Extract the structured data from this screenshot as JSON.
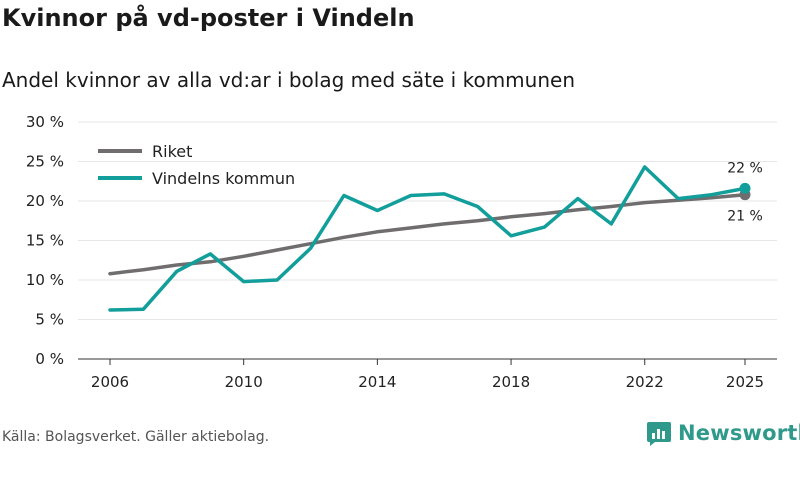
{
  "title": "Kvinnor på vd-poster i Vindeln",
  "subtitle": "Andel kvinnor av alla vd:ar i bolag med säte i kommunen",
  "source": "Källa: Bolagsverket. Gäller aktiebolag.",
  "brand": "Newsworthy",
  "colors": {
    "riket": "#706d6e",
    "vindeln": "#129e9a",
    "grid": "#e6e6e6",
    "brand": "#2f9a8c"
  },
  "chart_data": {
    "type": "line",
    "title": "Kvinnor på vd-poster i Vindeln",
    "subtitle": "Andel kvinnor av alla vd:ar i bolag med säte i kommunen",
    "xlabel": "",
    "ylabel": "",
    "x": [
      2006,
      2007,
      2008,
      2009,
      2010,
      2011,
      2012,
      2013,
      2014,
      2015,
      2016,
      2017,
      2018,
      2019,
      2020,
      2021,
      2022,
      2023,
      2024,
      2025
    ],
    "xticks": [
      2006,
      2010,
      2014,
      2018,
      2022,
      2025
    ],
    "xtick_labels": [
      "2006",
      "2010",
      "2014",
      "2018",
      "2022",
      "2025"
    ],
    "ylim": [
      0,
      30
    ],
    "yticks": [
      0,
      5,
      10,
      15,
      20,
      25,
      30
    ],
    "ytick_labels": [
      "0 %",
      "5 %",
      "10 %",
      "15 %",
      "20 %",
      "25 %",
      "30 %"
    ],
    "grid": true,
    "legend_position": "top-left",
    "series": [
      {
        "name": "Riket",
        "color": "#706d6e",
        "values": [
          10.8,
          11.3,
          11.9,
          12.3,
          13.0,
          13.8,
          14.6,
          15.4,
          16.1,
          16.6,
          17.1,
          17.5,
          18.0,
          18.4,
          18.9,
          19.3,
          19.8,
          20.1,
          20.4,
          20.8
        ],
        "end_label": "21 %"
      },
      {
        "name": "Vindelns kommun",
        "color": "#129e9a",
        "values": [
          6.2,
          6.3,
          11.1,
          13.3,
          9.8,
          10.0,
          14.0,
          20.7,
          18.8,
          20.7,
          20.9,
          19.3,
          15.6,
          16.7,
          20.3,
          17.1,
          24.3,
          20.3,
          20.8,
          21.6
        ],
        "end_label": "22 %"
      }
    ]
  }
}
